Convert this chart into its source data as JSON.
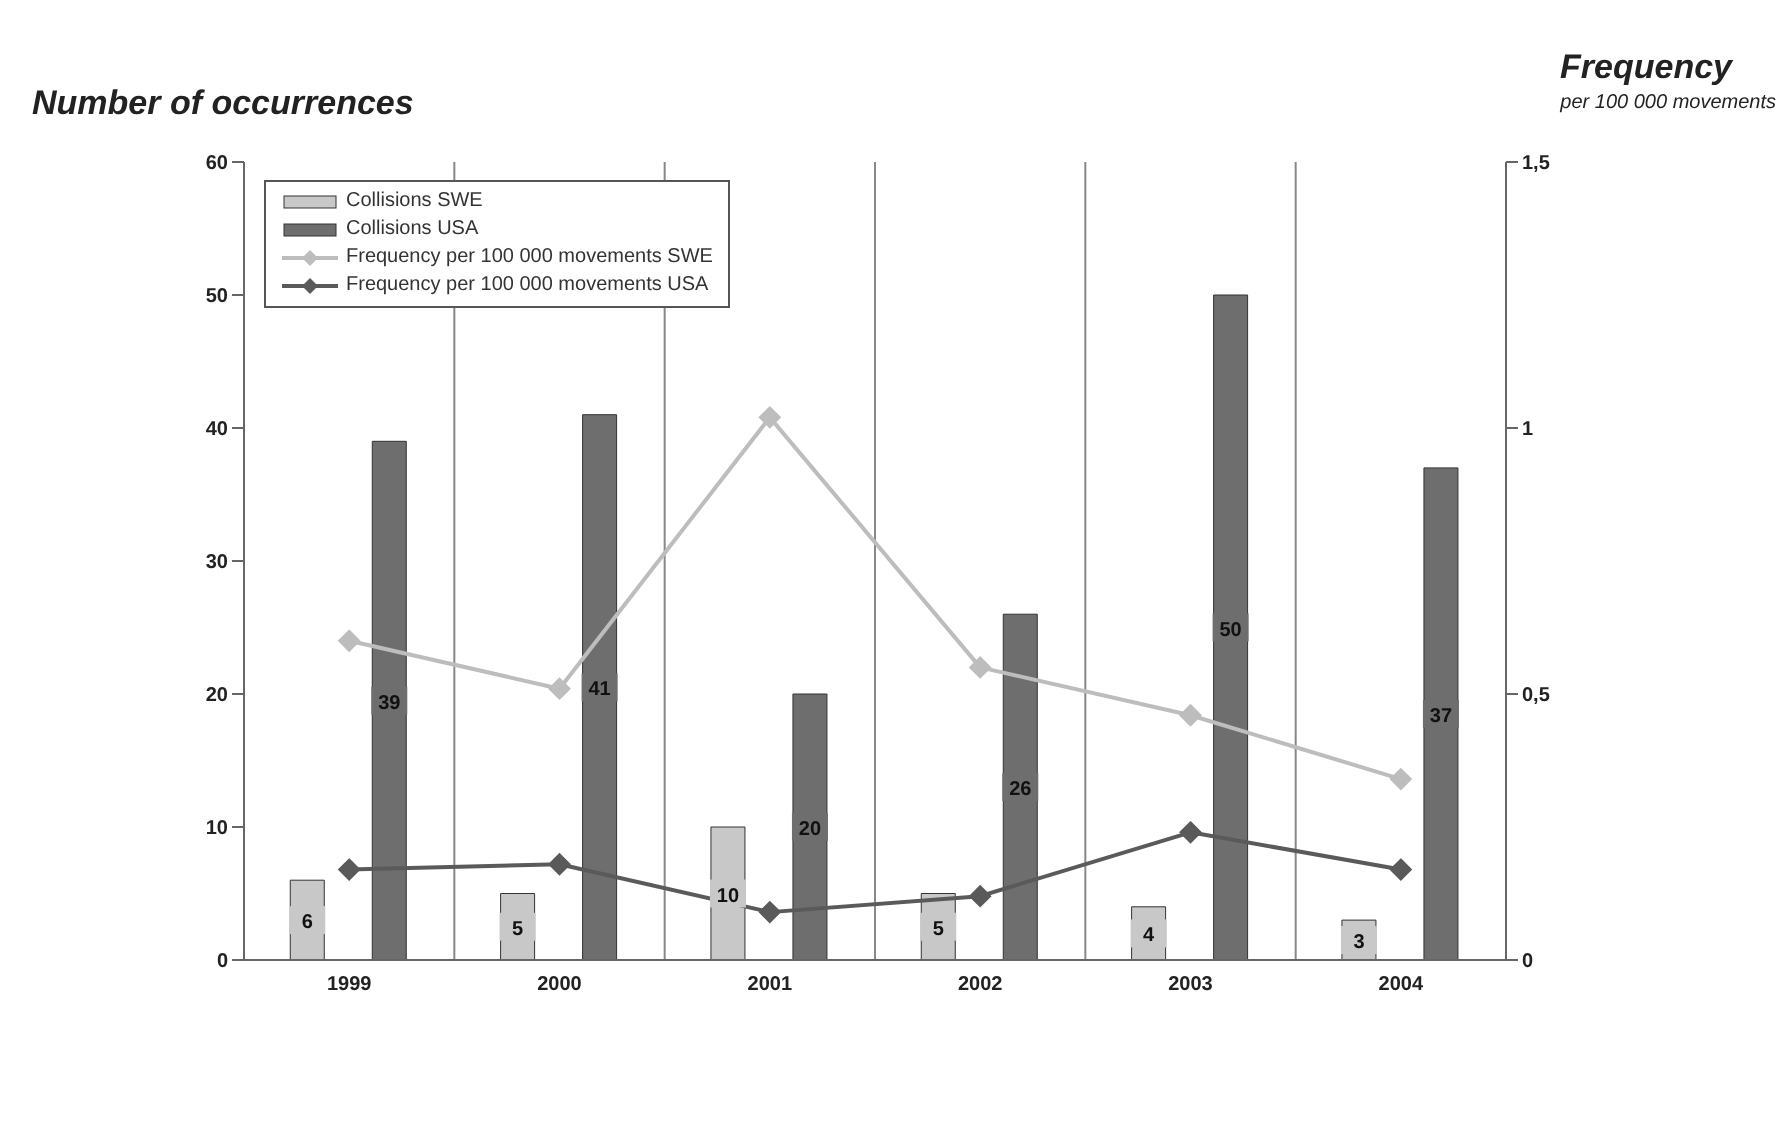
{
  "chart_data": {
    "type": "bar",
    "y2label": "Frequency",
    "annotations": [
      "Number of occurrences",
      "per 100 000 movements"
    ],
    "categories": [
      "1999",
      "2000",
      "2001",
      "2002",
      "2003",
      "2004"
    ],
    "series": [
      {
        "name": "Collisions SWE",
        "color": "#c8c8c8",
        "values": [
          6,
          5,
          10,
          5,
          4,
          3
        ],
        "value_labels": [
          "6",
          "5",
          "10",
          "5",
          "4",
          "3"
        ]
      },
      {
        "name": "Collisions USA",
        "color": "#6e6e6e",
        "values": [
          39,
          41,
          20,
          26,
          50,
          37
        ],
        "value_labels": [
          "39",
          "41",
          "20",
          "26",
          "50",
          "37"
        ]
      },
      {
        "name": "Frequency per 100 000 movements SWE",
        "type": "line",
        "axis": "y2",
        "color": "#bdbdbd",
        "values": [
          0.6,
          0.51,
          1.02,
          0.55,
          0.46,
          0.34
        ]
      },
      {
        "name": "Frequency per 100 000 movements USA",
        "type": "line",
        "axis": "y2",
        "color": "#5a5a5a",
        "values": [
          0.17,
          0.18,
          0.09,
          0.12,
          0.24,
          0.17
        ]
      }
    ],
    "ylim": [
      0,
      60
    ],
    "yticks": [
      0,
      10,
      20,
      30,
      40,
      50,
      60
    ],
    "y2lim": [
      0,
      1.5
    ],
    "y2ticks": [
      0,
      {
        "value": 0.5,
        "label": "0,5"
      },
      1,
      {
        "value": 1.5,
        "label": "1,5"
      }
    ],
    "grid": "x",
    "legend": "top left",
    "marker": "diamond"
  }
}
